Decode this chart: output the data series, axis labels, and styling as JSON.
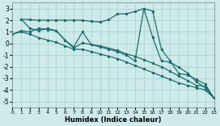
{
  "xlabel": "Humidex (Indice chaleur)",
  "ylabel": "",
  "xlim": [
    0,
    23
  ],
  "ylim": [
    -5.5,
    3.5
  ],
  "background_color": "#ceeaea",
  "grid_color": "#aed4d4",
  "line_color": "#1e6e6e",
  "xticks": [
    0,
    1,
    2,
    3,
    4,
    5,
    6,
    7,
    8,
    9,
    10,
    11,
    12,
    13,
    14,
    15,
    16,
    17,
    18,
    19,
    20,
    21,
    22,
    23
  ],
  "yticks": [
    -5,
    -4,
    -3,
    -2,
    -1,
    0,
    1,
    2,
    3
  ],
  "series": [
    {
      "x": [
        1,
        2,
        3,
        4,
        5,
        6,
        7,
        8,
        9,
        10,
        11,
        12,
        13,
        14,
        15,
        16,
        17,
        18,
        19,
        20,
        21,
        22,
        23
      ],
      "y": [
        2.1,
        2.05,
        2.0,
        2.0,
        2.0,
        2.0,
        2.0,
        2.0,
        1.9,
        1.85,
        2.05,
        2.55,
        2.55,
        2.75,
        3.0,
        0.55,
        -1.5,
        -1.6,
        -2.05,
        -2.55,
        -3.3,
        -3.8,
        -4.7
      ]
    },
    {
      "x": [
        0,
        1,
        2,
        3,
        4,
        5,
        6,
        7,
        8,
        9,
        10,
        11,
        12,
        13,
        14,
        15,
        16,
        17,
        18,
        19,
        20,
        21,
        22,
        23
      ],
      "y": [
        0.8,
        1.0,
        0.8,
        0.5,
        0.3,
        0.1,
        -0.2,
        -0.5,
        -0.5,
        -0.7,
        -0.9,
        -1.1,
        -1.3,
        -1.6,
        -1.9,
        -2.2,
        -2.5,
        -2.8,
        -3.1,
        -3.4,
        -3.6,
        -3.8,
        -4.0,
        -4.7
      ]
    },
    {
      "x": [
        0,
        1,
        2,
        3,
        4,
        5,
        6,
        7,
        8,
        9,
        10,
        11,
        12,
        13,
        14,
        15,
        16,
        17,
        18,
        19,
        20,
        21,
        22,
        23
      ],
      "y": [
        0.8,
        1.1,
        1.0,
        1.3,
        1.2,
        1.1,
        0.3,
        -0.4,
        0.05,
        -0.1,
        -0.2,
        -0.4,
        -0.6,
        -0.9,
        -1.1,
        -1.4,
        -1.7,
        -2.0,
        -2.4,
        -2.8,
        -3.2,
        -3.6,
        -3.7,
        -4.7
      ]
    },
    {
      "x": [
        1,
        2,
        3,
        4,
        5,
        6,
        7,
        8,
        9,
        10,
        11,
        12,
        13,
        14,
        15,
        16,
        17,
        18,
        19,
        20,
        21,
        22,
        23
      ],
      "y": [
        2.1,
        1.3,
        1.1,
        1.3,
        1.1,
        0.3,
        -0.3,
        1.0,
        -0.1,
        -0.3,
        -0.5,
        -0.7,
        -1.0,
        -1.5,
        3.0,
        2.8,
        -0.5,
        -1.5,
        -2.6,
        -2.7,
        -3.1,
        -3.5,
        -4.7
      ]
    }
  ]
}
